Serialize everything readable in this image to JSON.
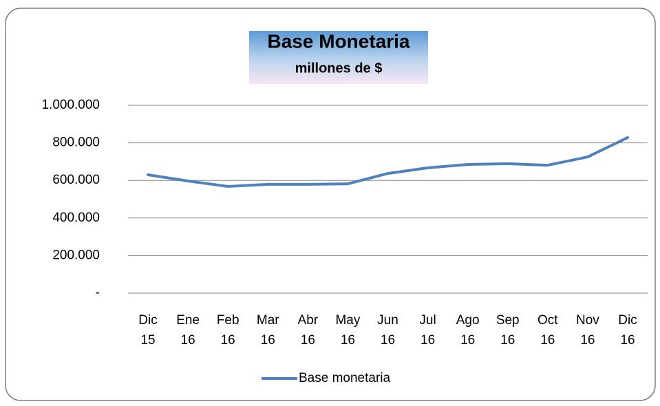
{
  "chart_data": {
    "type": "line",
    "title": "Base Monetaria",
    "subtitle": "millones de $",
    "categories": [
      "Dic 15",
      "Ene 16",
      "Feb 16",
      "Mar 16",
      "Abr 16",
      "May 16",
      "Jun 16",
      "Jul 16",
      "Ago 16",
      "Sep 16",
      "Oct 16",
      "Nov 16",
      "Dic 16"
    ],
    "series": [
      {
        "name": "Base monetaria",
        "color": "#4f81bd",
        "values": [
          630000,
          597000,
          568000,
          579000,
          579000,
          582000,
          637000,
          667000,
          685000,
          689000,
          681000,
          725000,
          828000
        ]
      }
    ],
    "ylim": [
      0,
      1000000
    ],
    "yticks": [
      {
        "value": 0,
        "label": "-"
      },
      {
        "value": 200000,
        "label": "200.000"
      },
      {
        "value": 400000,
        "label": "400.000"
      },
      {
        "value": 600000,
        "label": "600.000"
      },
      {
        "value": 800000,
        "label": "800.000"
      },
      {
        "value": 1000000,
        "label": "1.000.000"
      }
    ],
    "grid": true,
    "legend": "bottom"
  }
}
